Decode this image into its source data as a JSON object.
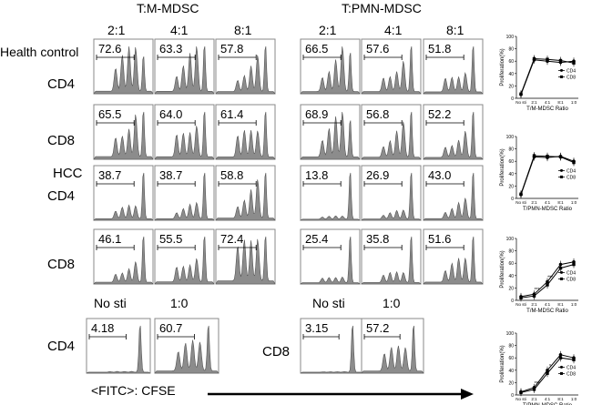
{
  "headers": {
    "mdsc": "T:M-MDSC",
    "pmn": "T:PMN-MDSC"
  },
  "ratios": [
    "2:1",
    "4:1",
    "8:1"
  ],
  "bottom_cols": [
    "No sti",
    "1:0"
  ],
  "row_labels": {
    "health_control": "Health control",
    "cd4": "CD4",
    "cd8": "CD8",
    "hcc": "HCC"
  },
  "axis_label": "<FITC>: CFSE",
  "histograms": {
    "mdsc": [
      [
        72.6,
        63.3,
        57.8
      ],
      [
        65.5,
        64.0,
        61.4
      ],
      [
        38.7,
        38.7,
        58.8
      ],
      [
        46.1,
        55.5,
        72.4
      ]
    ],
    "pmn": [
      [
        66.5,
        57.6,
        51.8
      ],
      [
        68.9,
        56.8,
        52.2
      ],
      [
        13.8,
        26.9,
        43.0
      ],
      [
        25.4,
        35.8,
        51.6
      ]
    ],
    "bottom_cd4": [
      4.18,
      60.7
    ],
    "bottom_cd8": [
      3.15,
      57.2
    ]
  },
  "chart_data": [
    {
      "type": "line",
      "categories": [
        "No sti",
        "2:1",
        "4:1",
        "8:1",
        "1:0"
      ],
      "xlabel": "T/M-MDSC Ratio",
      "ylabel": "Proliferation(%)",
      "ylim": [
        0,
        100
      ],
      "yticks": [
        0,
        20,
        40,
        60,
        80,
        100
      ],
      "series": [
        {
          "name": "CD4",
          "values": [
            6,
            62,
            60,
            58,
            60
          ]
        },
        {
          "name": "CD8",
          "values": [
            7,
            64,
            63,
            61,
            57
          ]
        }
      ]
    },
    {
      "type": "line",
      "categories": [
        "No sti",
        "2:1",
        "4:1",
        "8:1",
        "1:0"
      ],
      "xlabel": "T/PMN-MDSC Ratio",
      "ylabel": "Proliferation(%)",
      "ylim": [
        0,
        100
      ],
      "yticks": [
        0,
        20,
        40,
        60,
        80,
        100
      ],
      "series": [
        {
          "name": "CD4",
          "values": [
            6,
            67,
            66,
            68,
            60
          ]
        },
        {
          "name": "CD8",
          "values": [
            7,
            69,
            68,
            67,
            58
          ]
        }
      ]
    },
    {
      "type": "line",
      "categories": [
        "No sti",
        "2:1",
        "4:1",
        "8:1",
        "1:0"
      ],
      "xlabel": "T/M-MDSC Ratio",
      "ylabel": "Proliferation(%)",
      "ylim": [
        0,
        100
      ],
      "yticks": [
        0,
        20,
        40,
        60,
        80,
        100
      ],
      "annotations": [
        "***",
        "***"
      ],
      "series": [
        {
          "name": "CD4",
          "values": [
            6,
            10,
            30,
            58,
            62
          ]
        },
        {
          "name": "CD8",
          "values": [
            4,
            7,
            25,
            52,
            58
          ]
        }
      ]
    },
    {
      "type": "line",
      "categories": [
        "No sti",
        "2:1",
        "4:1",
        "8:1",
        "1:0"
      ],
      "xlabel": "T/PMN-MDSC Ratio",
      "ylabel": "Proliferation(%)",
      "ylim": [
        0,
        100
      ],
      "yticks": [
        0,
        20,
        40,
        60,
        80,
        100
      ],
      "annotations": [
        "***",
        "*"
      ],
      "series": [
        {
          "name": "CD4",
          "values": [
            5,
            12,
            40,
            65,
            60
          ]
        },
        {
          "name": "CD8",
          "values": [
            4,
            9,
            35,
            60,
            57
          ]
        }
      ]
    }
  ]
}
